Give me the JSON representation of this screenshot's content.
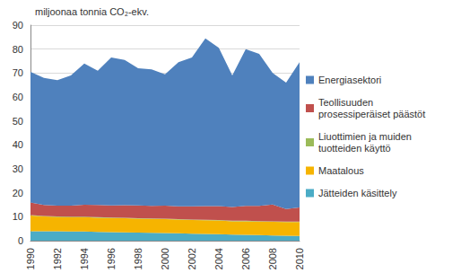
{
  "chart_data": {
    "type": "area",
    "y_label": "miljoonaa tonnia CO₂-ekv.",
    "categories": [
      "1990",
      null,
      "1992",
      null,
      "1994",
      null,
      "1996",
      null,
      "1998",
      null,
      "2000",
      null,
      "2002",
      null,
      "2004",
      null,
      "2006",
      null,
      "2008",
      null,
      "2010"
    ],
    "series": [
      {
        "name": "Jätteiden käsittely",
        "color": "#4bacc6",
        "values": [
          3.9,
          3.9,
          3.9,
          3.8,
          3.8,
          3.7,
          3.6,
          3.5,
          3.4,
          3.3,
          3.2,
          3.1,
          2.9,
          2.8,
          2.7,
          2.5,
          2.4,
          2.3,
          2.2,
          2.1,
          2.0
        ]
      },
      {
        "name": "Maatalous",
        "color": "#f6b400",
        "values": [
          6.6,
          6.2,
          6.0,
          6.0,
          6.0,
          5.9,
          5.9,
          5.9,
          5.8,
          5.8,
          5.8,
          5.7,
          5.7,
          5.7,
          5.7,
          5.6,
          5.7,
          5.7,
          5.7,
          5.7,
          5.8
        ]
      },
      {
        "name": "Liuottimien ja muiden tuotteiden käyttö",
        "color": "#9bbb59",
        "values": [
          0.2,
          0.2,
          0.2,
          0.2,
          0.2,
          0.2,
          0.2,
          0.2,
          0.2,
          0.2,
          0.2,
          0.2,
          0.2,
          0.2,
          0.2,
          0.2,
          0.2,
          0.2,
          0.2,
          0.2,
          0.2
        ]
      },
      {
        "name": "Teollisuuden prosessiperäiset päästöt",
        "color": "#c0504d",
        "values": [
          5.2,
          4.6,
          4.5,
          4.6,
          5.0,
          5.1,
          5.0,
          5.2,
          5.3,
          5.2,
          5.4,
          5.3,
          5.5,
          5.7,
          5.8,
          5.8,
          6.2,
          6.3,
          7.0,
          5.2,
          5.9
        ]
      },
      {
        "name": "Energiasektori",
        "color": "#4f81bd",
        "values": [
          54.6,
          53.1,
          52.4,
          54.4,
          59.0,
          56.1,
          61.8,
          60.7,
          57.3,
          57.0,
          54.9,
          60.2,
          62.2,
          70.1,
          66.1,
          54.9,
          65.5,
          63.5,
          54.9,
          52.8,
          60.6
        ]
      }
    ],
    "ylim": [
      0,
      90
    ],
    "yticks": [
      0,
      10,
      20,
      30,
      40,
      50,
      60,
      70,
      80,
      90
    ],
    "stacked": true,
    "grid": true,
    "legend": "right"
  }
}
